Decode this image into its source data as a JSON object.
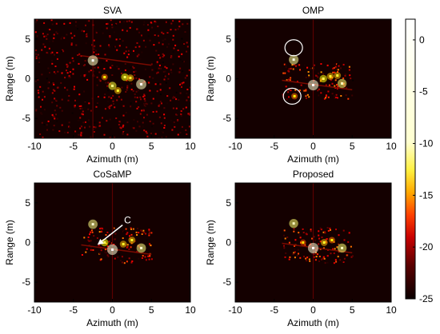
{
  "chart_data": [
    {
      "type": "heatmap",
      "title": "SVA",
      "xlabel": "Azimuth (m)",
      "ylabel": "Range (m)",
      "xlim": [
        -10,
        10
      ],
      "ylim": [
        -7.5,
        7.5
      ],
      "xticks": [
        "-10",
        "-5",
        "0",
        "5",
        "10"
      ],
      "yticks": [
        "5",
        "0",
        "-5"
      ],
      "background": "scattered low-level speckle over whole scene",
      "scatterers": [
        {
          "x": -2.5,
          "y": 2.3,
          "level": -1
        },
        {
          "x": 3.7,
          "y": -0.7,
          "level": -1
        },
        {
          "x": 0.0,
          "y": -0.9,
          "level": -8
        },
        {
          "x": 1.6,
          "y": 0.2,
          "level": -10
        },
        {
          "x": 2.3,
          "y": 0.1,
          "level": -12
        },
        {
          "x": -1.0,
          "y": 0.2,
          "level": -14
        },
        {
          "x": 0.7,
          "y": -1.5,
          "level": -12
        }
      ]
    },
    {
      "type": "heatmap",
      "title": "OMP",
      "xlabel": "Azimuth (m)",
      "ylabel": "Range (m)",
      "xlim": [
        -10,
        10
      ],
      "ylim": [
        -7.5,
        7.5
      ],
      "xticks": [
        "-10",
        "-5",
        "0",
        "5",
        "10"
      ],
      "yticks": [
        "5",
        "0",
        "-5"
      ],
      "annotations": [
        {
          "type": "ellipse",
          "x": -2.5,
          "y": 3.9
        },
        {
          "type": "ellipse",
          "x": -2.7,
          "y": -2.2
        }
      ],
      "scatterers": [
        {
          "x": -2.5,
          "y": 2.4,
          "level": -3
        },
        {
          "x": 0.0,
          "y": -0.8,
          "level": 0
        },
        {
          "x": 3.7,
          "y": -0.6,
          "level": -5
        },
        {
          "x": 1.3,
          "y": 0.0,
          "level": -10
        },
        {
          "x": 2.2,
          "y": 0.3,
          "level": -12
        },
        {
          "x": 3.1,
          "y": 0.4,
          "level": -12
        },
        {
          "x": -2.4,
          "y": -2.2,
          "level": -14
        }
      ]
    },
    {
      "type": "heatmap",
      "title": "CoSaMP",
      "xlabel": "Azimuth (m)",
      "ylabel": "Range (m)",
      "xlim": [
        -10,
        10
      ],
      "ylim": [
        -7.5,
        7.5
      ],
      "xticks": [
        "-10",
        "-5",
        "0",
        "5",
        "10"
      ],
      "yticks": [
        "5",
        "0",
        "-5"
      ],
      "annotations": [
        {
          "type": "arrow",
          "label": "C",
          "from": [
            1.3,
            2.2
          ],
          "to": [
            -1.8,
            -0.2
          ]
        }
      ],
      "scatterers": [
        {
          "x": -2.5,
          "y": 2.3,
          "level": -4
        },
        {
          "x": 0.0,
          "y": -0.9,
          "level": 0
        },
        {
          "x": 3.7,
          "y": -0.7,
          "level": -4
        },
        {
          "x": -1.0,
          "y": 0.0,
          "level": -10
        },
        {
          "x": 1.4,
          "y": -0.2,
          "level": -12
        },
        {
          "x": 2.5,
          "y": 0.3,
          "level": -12
        }
      ]
    },
    {
      "type": "heatmap",
      "title": "Proposed",
      "xlabel": "Azimuth (m)",
      "ylabel": "Range (m)",
      "xlim": [
        -10,
        10
      ],
      "ylim": [
        -7.5,
        7.5
      ],
      "xticks": [
        "-10",
        "-5",
        "0",
        "5",
        "10"
      ],
      "yticks": [
        "5",
        "0",
        "-5"
      ],
      "scatterers": [
        {
          "x": -2.5,
          "y": 2.4,
          "level": -5
        },
        {
          "x": 0.0,
          "y": -0.7,
          "level": 0
        },
        {
          "x": 3.7,
          "y": -0.7,
          "level": -5
        },
        {
          "x": 1.4,
          "y": 0.0,
          "level": -12
        },
        {
          "x": 2.4,
          "y": 0.3,
          "level": -14
        },
        {
          "x": -1.3,
          "y": 0.0,
          "level": -15
        }
      ]
    }
  ],
  "colorbar": {
    "colormap": "hot",
    "range": [
      -25,
      2
    ],
    "ticks": [
      "0",
      "-5",
      "-10",
      "-15",
      "-20",
      "-25"
    ]
  }
}
